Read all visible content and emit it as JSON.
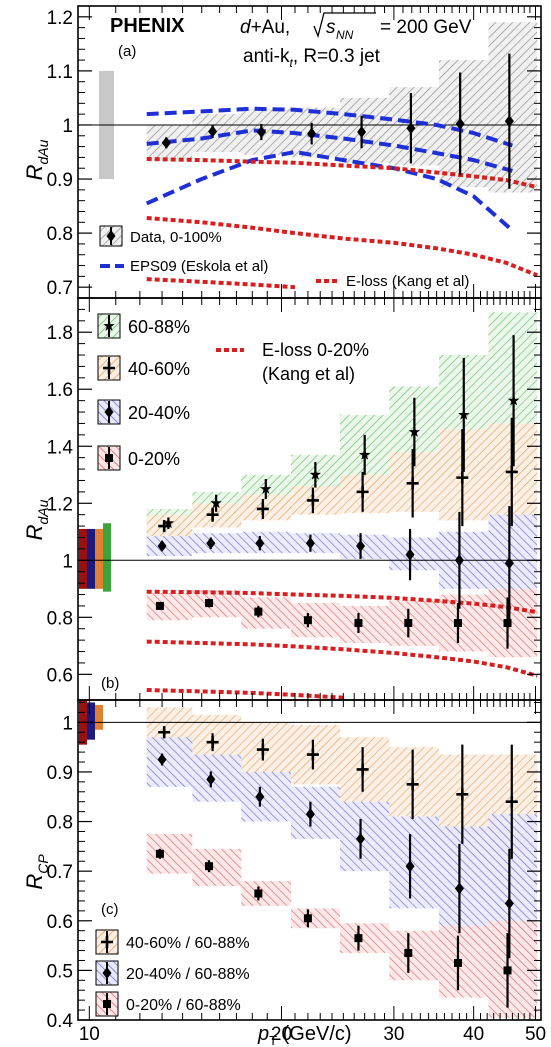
{
  "header": {
    "experiment": "PHENIX",
    "system_prefix": "d+Au, ",
    "energy_label": "= 200 GeV",
    "sqrt_sub": "NN",
    "sqrt_s": "s",
    "algo_line": "anti-k",
    "algo_sub": "t",
    "algo_rest": ", R=0.3 jet"
  },
  "colors": {
    "data": "#000000",
    "gray_sys": "#9a9a9a",
    "eps09": "#1f2fd6",
    "eloss": "#d42020",
    "c6088": "#3aa63a",
    "c4060": "#e08030",
    "c2040": "#3a3ad0",
    "c020": "#d03030",
    "darkred": "#9a1010",
    "navy": "#1a1a80"
  },
  "axes": {
    "x_label": "p",
    "x_label_sub": "T",
    "x_label_unit": " (GeV/c)",
    "x_ticks": [
      "10",
      "20",
      "30",
      "40",
      "50"
    ],
    "xlim": [
      9.6,
      51
    ],
    "panel_a_ylabel": "R",
    "panel_a_ylabel_sub": "dAu",
    "panel_b_ylabel": "R",
    "panel_b_ylabel_sub": "dAu",
    "panel_c_ylabel": "R",
    "panel_c_ylabel_sub": "CP"
  },
  "chart_data": [
    {
      "type": "scatter",
      "panel_tag": "(a)",
      "ylim": [
        0.68,
        1.22
      ],
      "yticks": [
        0.7,
        0.8,
        0.9,
        1.0,
        1.1,
        1.2
      ],
      "ytick_labels": [
        "0.7",
        "0.8",
        "0.9",
        "1",
        "1.1",
        "1.2"
      ],
      "global_unc": [
        0.9,
        1.1
      ],
      "series": [
        {
          "name": "Data, 0-100%",
          "x": [
            13.2,
            15.6,
            18.6,
            22.3,
            26.7,
            31.9,
            38.1,
            45.5
          ],
          "values": [
            0.967,
            0.988,
            0.987,
            0.984,
            0.987,
            0.994,
            1.002,
            1.007
          ],
          "stat_err": [
            0.01,
            0.012,
            0.015,
            0.02,
            0.03,
            0.065,
            0.095,
            0.125
          ],
          "x_lo": [
            12.3,
            14.5,
            17.3,
            20.7,
            24.7,
            29.5,
            35.3,
            42.2
          ],
          "x_hi": [
            14.5,
            17.3,
            20.7,
            24.7,
            29.5,
            35.3,
            42.2,
            50.3
          ],
          "sys_lo": [
            0.935,
            0.95,
            0.945,
            0.94,
            0.93,
            0.925,
            0.885,
            0.875
          ],
          "sys_hi": [
            1.0,
            1.02,
            1.03,
            1.032,
            1.05,
            1.07,
            1.12,
            1.19
          ]
        }
      ],
      "curves": [
        {
          "name": "EPS09 (Eskola et al)",
          "x": [
            12.3,
            15,
            18,
            21,
            25,
            30,
            35,
            40,
            46
          ],
          "upper": [
            1.02,
            1.025,
            1.03,
            1.028,
            1.02,
            1.01,
            1.0,
            0.985,
            0.962
          ],
          "mid": [
            0.965,
            0.975,
            0.99,
            0.985,
            0.975,
            0.962,
            0.948,
            0.935,
            0.915
          ],
          "lower": [
            0.855,
            0.9,
            0.935,
            0.95,
            0.935,
            0.92,
            0.9,
            0.868,
            0.805
          ]
        },
        {
          "name": "E-loss (Kang et al)",
          "x": [
            12.3,
            15,
            18,
            21,
            25,
            30,
            35,
            40,
            45,
            50.3
          ],
          "upper": [
            0.937,
            0.935,
            0.932,
            0.93,
            0.925,
            0.92,
            0.912,
            0.905,
            0.898,
            0.885
          ],
          "lower": [
            0.828,
            0.82,
            0.81,
            0.8,
            0.79,
            0.782,
            0.772,
            0.76,
            0.745,
            0.722
          ],
          "lower2": [
            0.715,
            0.71,
            0.705,
            0.7
          ]
        }
      ],
      "legend": [
        "Data, 0-100%",
        "EPS09 (Eskola et al)",
        "E-loss (Kang et al)"
      ]
    },
    {
      "type": "scatter",
      "panel_tag": "(b)",
      "ylim": [
        0.51,
        1.92
      ],
      "yticks": [
        0.6,
        0.8,
        1.0,
        1.2,
        1.4,
        1.6,
        1.8
      ],
      "ytick_labels": [
        "0.6",
        "0.8",
        "1",
        "1.2",
        "1.4",
        "1.6",
        "1.8"
      ],
      "x_bins_lo": [
        12.3,
        14.5,
        17.3,
        20.7,
        24.7,
        29.5,
        35.3,
        42.2
      ],
      "x_bins_hi": [
        14.5,
        17.3,
        20.7,
        24.7,
        29.5,
        35.3,
        42.2,
        50.3
      ],
      "series": [
        {
          "name": "60-88%",
          "marker": "star",
          "x": [
            13.3,
            15.8,
            18.9,
            22.6,
            27.0,
            32.3,
            38.6,
            46.2
          ],
          "values": [
            1.13,
            1.2,
            1.25,
            1.3,
            1.37,
            1.45,
            1.51,
            1.56
          ],
          "stat_err": [
            0.02,
            0.03,
            0.035,
            0.045,
            0.07,
            0.12,
            0.2,
            0.23
          ],
          "sys_lo": [
            1.085,
            1.14,
            1.18,
            1.215,
            1.25,
            1.27,
            1.29,
            1.26
          ],
          "sys_hi": [
            1.18,
            1.24,
            1.3,
            1.37,
            1.51,
            1.61,
            1.72,
            1.87
          ]
        },
        {
          "name": "40-60%",
          "marker": "cross",
          "x": [
            13.1,
            15.6,
            18.7,
            22.4,
            26.8,
            32.1,
            38.4,
            45.9
          ],
          "values": [
            1.12,
            1.16,
            1.18,
            1.21,
            1.24,
            1.27,
            1.29,
            1.31
          ],
          "stat_err": [
            0.02,
            0.025,
            0.035,
            0.045,
            0.07,
            0.12,
            0.17,
            0.19
          ],
          "sys_lo": [
            1.085,
            1.115,
            1.14,
            1.16,
            1.165,
            1.17,
            1.14,
            1.12
          ],
          "sys_hi": [
            1.16,
            1.2,
            1.23,
            1.26,
            1.3,
            1.38,
            1.46,
            1.48
          ]
        },
        {
          "name": "20-40%",
          "marker": "diamond",
          "x": [
            13.0,
            15.5,
            18.5,
            22.2,
            26.6,
            31.8,
            38.0,
            45.5
          ],
          "values": [
            1.05,
            1.06,
            1.06,
            1.06,
            1.05,
            1.02,
            1.0,
            0.99
          ],
          "stat_err": [
            0.015,
            0.02,
            0.025,
            0.03,
            0.045,
            0.09,
            0.17,
            0.2
          ],
          "sys_lo": [
            1.015,
            1.025,
            1.025,
            1.025,
            1.005,
            0.965,
            0.9,
            0.84
          ],
          "sys_hi": [
            1.085,
            1.095,
            1.1,
            1.095,
            1.09,
            1.08,
            1.1,
            1.16
          ]
        },
        {
          "name": "0-20%",
          "marker": "square",
          "x": [
            12.9,
            15.4,
            18.4,
            22.0,
            26.4,
            31.6,
            37.8,
            45.2
          ],
          "values": [
            0.84,
            0.85,
            0.82,
            0.79,
            0.78,
            0.78,
            0.78,
            0.78
          ],
          "stat_err": [
            0.012,
            0.015,
            0.02,
            0.025,
            0.035,
            0.05,
            0.07,
            0.09
          ],
          "sys_lo": [
            0.79,
            0.8,
            0.76,
            0.73,
            0.71,
            0.7,
            0.68,
            0.66
          ],
          "sys_hi": [
            0.885,
            0.895,
            0.87,
            0.85,
            0.84,
            0.86,
            0.88,
            0.9
          ]
        }
      ],
      "global_unc": [
        {
          "name": "0-20%",
          "range": [
            0.9,
            1.11
          ]
        },
        {
          "name": "20-40%",
          "range": [
            0.9,
            1.11
          ]
        },
        {
          "name": "40-60%",
          "range": [
            0.9,
            1.11
          ]
        },
        {
          "name": "60-88%",
          "range": [
            0.89,
            1.13
          ]
        }
      ],
      "curves": [
        {
          "name": "E-loss 0-20% (Kang et al)",
          "x": [
            12.3,
            15,
            18,
            21,
            25,
            30,
            35,
            40,
            45,
            50.3
          ],
          "upper": [
            0.89,
            0.888,
            0.885,
            0.88,
            0.875,
            0.868,
            0.858,
            0.848,
            0.836,
            0.818
          ],
          "lower": [
            0.715,
            0.71,
            0.705,
            0.698,
            0.688,
            0.675,
            0.66,
            0.645,
            0.625,
            0.595
          ],
          "lower2": [
            0.545,
            0.54,
            0.535,
            0.528,
            0.518
          ]
        }
      ],
      "legend": [
        "60-88%",
        "40-60%",
        "20-40%",
        "0-20%",
        "E-loss 0-20%",
        "(Kang et al)"
      ]
    },
    {
      "type": "scatter",
      "panel_tag": "(c)",
      "ylim": [
        0.4,
        1.045
      ],
      "yticks": [
        0.4,
        0.5,
        0.6,
        0.7,
        0.8,
        0.9,
        1.0
      ],
      "ytick_labels": [
        "0.4",
        "0.5",
        "0.6",
        "0.7",
        "0.8",
        "0.9",
        "1"
      ],
      "series": [
        {
          "name": "40-60% / 60-88%",
          "marker": "cross",
          "x": [
            13.1,
            15.6,
            18.7,
            22.4,
            26.8,
            32.1,
            38.4,
            45.9
          ],
          "values": [
            0.98,
            0.96,
            0.945,
            0.935,
            0.905,
            0.875,
            0.855,
            0.84
          ],
          "stat_err": [
            0.012,
            0.018,
            0.022,
            0.03,
            0.045,
            0.07,
            0.1,
            0.115
          ],
          "sys_lo": [
            0.925,
            0.905,
            0.89,
            0.875,
            0.84,
            0.81,
            0.775,
            0.74
          ],
          "sys_hi": [
            1.03,
            1.015,
            1.0,
            0.995,
            0.97,
            0.95,
            0.935,
            0.935
          ]
        },
        {
          "name": "20-40% / 60-88%",
          "marker": "diamond",
          "x": [
            13.0,
            15.5,
            18.5,
            22.2,
            26.6,
            31.8,
            38.0,
            45.5
          ],
          "values": [
            0.925,
            0.885,
            0.85,
            0.815,
            0.765,
            0.71,
            0.665,
            0.635
          ],
          "stat_err": [
            0.012,
            0.016,
            0.02,
            0.025,
            0.04,
            0.065,
            0.09,
            0.11
          ],
          "sys_lo": [
            0.87,
            0.84,
            0.8,
            0.765,
            0.7,
            0.625,
            0.55,
            0.44
          ],
          "sys_hi": [
            0.97,
            0.935,
            0.9,
            0.87,
            0.84,
            0.81,
            0.79,
            0.815
          ]
        },
        {
          "name": "0-20% / 60-88%",
          "marker": "square",
          "x": [
            12.9,
            15.4,
            18.4,
            22.0,
            26.4,
            31.6,
            37.8,
            45.2
          ],
          "values": [
            0.735,
            0.71,
            0.655,
            0.605,
            0.565,
            0.535,
            0.515,
            0.5
          ],
          "stat_err": [
            0.01,
            0.012,
            0.014,
            0.018,
            0.025,
            0.04,
            0.055,
            0.075
          ],
          "sys_lo": [
            0.695,
            0.67,
            0.63,
            0.585,
            0.535,
            0.48,
            0.445,
            0.405
          ],
          "sys_hi": [
            0.775,
            0.745,
            0.68,
            0.625,
            0.595,
            0.58,
            0.59,
            0.6
          ]
        }
      ],
      "global_unc": [
        {
          "name": "0-20%",
          "range": [
            0.955,
            1.045
          ]
        },
        {
          "name": "20-40%",
          "range": [
            0.965,
            1.04
          ]
        },
        {
          "name": "40-60%",
          "range": [
            0.985,
            1.035
          ]
        }
      ],
      "legend": [
        "40-60% / 60-88%",
        "20-40% / 60-88%",
        "0-20% / 60-88%"
      ]
    }
  ]
}
